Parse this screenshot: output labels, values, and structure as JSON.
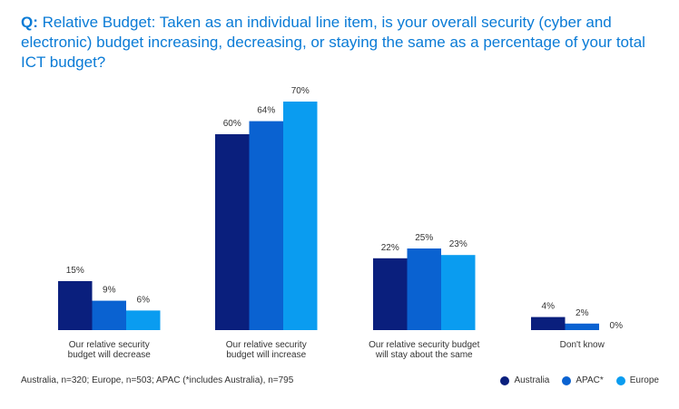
{
  "title": {
    "prefix": "Q:",
    "text": "Relative Budget: Taken as an individual line item, is your overall security (cyber and electronic) budget increasing, decreasing, or staying the same as a percentage of your total ICT budget?"
  },
  "footer": "Australia, n=320; Europe, n=503; APAC (*includes Australia), n=795",
  "colors": {
    "Australia": "#0a1f7d",
    "APAC*": "#0a62d1",
    "Europe": "#0a9cf0"
  },
  "chart_data": {
    "type": "bar",
    "categories": [
      [
        "Our relative security",
        "budget will decrease"
      ],
      [
        "Our relative security",
        "budget will increase"
      ],
      [
        "Our relative security budget",
        "will stay about the same"
      ],
      [
        "Don't know"
      ]
    ],
    "series": [
      {
        "name": "Australia",
        "values": [
          15,
          60,
          22,
          4
        ]
      },
      {
        "name": "APAC*",
        "values": [
          9,
          64,
          25,
          2
        ]
      },
      {
        "name": "Europe",
        "values": [
          6,
          70,
          23,
          0
        ]
      }
    ],
    "value_suffix": "%",
    "ylim": [
      0,
      70
    ],
    "grid": false,
    "legend": "bottom-right"
  }
}
